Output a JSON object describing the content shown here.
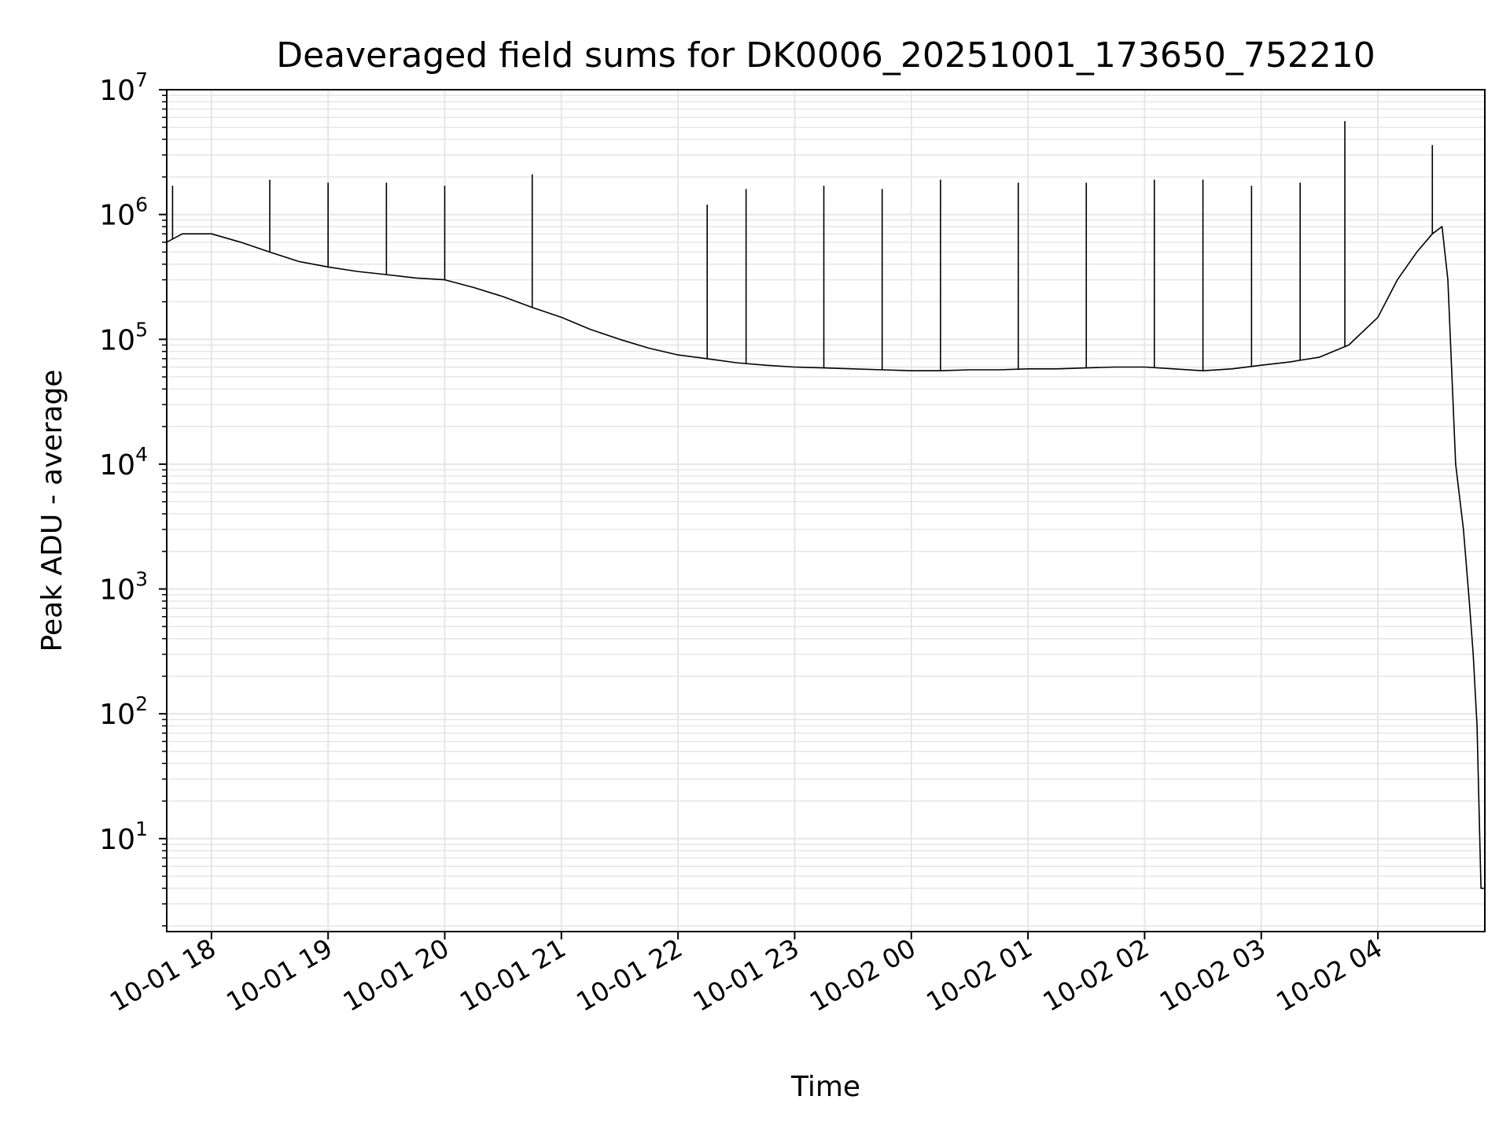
{
  "chart_data": {
    "type": "line",
    "title": "Deaveraged field sums for DK0006_20251001_173650_752210",
    "xlabel": "Time",
    "ylabel": "Peak ADU - average",
    "y_scale": "log",
    "ylim": [
      1.8,
      10000000
    ],
    "xlim": [
      "2025-10-01 17:37",
      "2025-10-02 04:55"
    ],
    "grid": "on (major and minor)",
    "colors": {
      "line": "#000000",
      "grid": "#e6e6e6",
      "axes": "#000000",
      "background": "#ffffff"
    },
    "x_ticks": [
      {
        "t": "2025-10-01 18:00",
        "label": "10-01 18"
      },
      {
        "t": "2025-10-01 19:00",
        "label": "10-01 19"
      },
      {
        "t": "2025-10-01 20:00",
        "label": "10-01 20"
      },
      {
        "t": "2025-10-01 21:00",
        "label": "10-01 21"
      },
      {
        "t": "2025-10-01 22:00",
        "label": "10-01 22"
      },
      {
        "t": "2025-10-01 23:00",
        "label": "10-01 23"
      },
      {
        "t": "2025-10-02 00:00",
        "label": "10-02 00"
      },
      {
        "t": "2025-10-02 01:00",
        "label": "10-02 01"
      },
      {
        "t": "2025-10-02 02:00",
        "label": "10-02 02"
      },
      {
        "t": "2025-10-02 03:00",
        "label": "10-02 03"
      },
      {
        "t": "2025-10-02 04:00",
        "label": "10-02 04"
      }
    ],
    "y_ticks": [
      {
        "value": 10,
        "base": "10",
        "exp": "1"
      },
      {
        "value": 100,
        "base": "10",
        "exp": "2"
      },
      {
        "value": 1000,
        "base": "10",
        "exp": "3"
      },
      {
        "value": 10000,
        "base": "10",
        "exp": "4"
      },
      {
        "value": 100000,
        "base": "10",
        "exp": "5"
      },
      {
        "value": 1000000,
        "base": "10",
        "exp": "6"
      },
      {
        "value": 10000000,
        "base": "10",
        "exp": "7"
      }
    ],
    "series": [
      {
        "x": [
          "2025-10-01 17:37",
          "2025-10-01 17:45",
          "2025-10-01 18:00",
          "2025-10-01 18:15",
          "2025-10-01 18:30",
          "2025-10-01 18:45",
          "2025-10-01 19:00",
          "2025-10-01 19:15",
          "2025-10-01 19:30",
          "2025-10-01 19:45",
          "2025-10-01 20:00",
          "2025-10-01 20:15",
          "2025-10-01 20:30",
          "2025-10-01 20:45",
          "2025-10-01 21:00",
          "2025-10-01 21:15",
          "2025-10-01 21:30",
          "2025-10-01 21:45",
          "2025-10-01 22:00",
          "2025-10-01 22:15",
          "2025-10-01 22:30",
          "2025-10-01 22:45",
          "2025-10-01 23:00",
          "2025-10-01 23:15",
          "2025-10-01 23:30",
          "2025-10-01 23:45",
          "2025-10-02 00:00",
          "2025-10-02 00:15",
          "2025-10-02 00:30",
          "2025-10-02 00:45",
          "2025-10-02 01:00",
          "2025-10-02 01:15",
          "2025-10-02 01:30",
          "2025-10-02 01:45",
          "2025-10-02 02:00",
          "2025-10-02 02:15",
          "2025-10-02 02:30",
          "2025-10-02 02:45",
          "2025-10-02 03:00",
          "2025-10-02 03:15",
          "2025-10-02 03:30",
          "2025-10-02 03:45",
          "2025-10-02 04:00",
          "2025-10-02 04:10",
          "2025-10-02 04:20",
          "2025-10-02 04:28",
          "2025-10-02 04:33",
          "2025-10-02 04:36",
          "2025-10-02 04:40",
          "2025-10-02 04:44",
          "2025-10-02 04:47",
          "2025-10-02 04:49",
          "2025-10-02 04:51",
          "2025-10-02 04:53",
          "2025-10-02 04:55"
        ],
        "y": [
          600000,
          700000,
          700000,
          600000,
          500000,
          420000,
          380000,
          350000,
          330000,
          310000,
          300000,
          260000,
          220000,
          180000,
          150000,
          120000,
          100000,
          85000,
          75000,
          70000,
          65000,
          62000,
          60000,
          59000,
          58000,
          57000,
          56000,
          56000,
          57000,
          57000,
          58000,
          58000,
          59000,
          60000,
          60000,
          58000,
          56000,
          58000,
          62000,
          66000,
          72000,
          90000,
          150000,
          300000,
          500000,
          700000,
          800000,
          300000,
          10000,
          3000,
          800,
          300,
          80,
          4,
          4
        ],
        "spikes": [
          {
            "t": "2025-10-01 17:40",
            "y": 1700000
          },
          {
            "t": "2025-10-01 18:30",
            "y": 1900000
          },
          {
            "t": "2025-10-01 19:00",
            "y": 1800000
          },
          {
            "t": "2025-10-01 19:30",
            "y": 1800000
          },
          {
            "t": "2025-10-01 20:00",
            "y": 1700000
          },
          {
            "t": "2025-10-01 20:45",
            "y": 2100000
          },
          {
            "t": "2025-10-01 22:15",
            "y": 1200000
          },
          {
            "t": "2025-10-01 22:35",
            "y": 1600000
          },
          {
            "t": "2025-10-01 23:15",
            "y": 1700000
          },
          {
            "t": "2025-10-01 23:45",
            "y": 1600000
          },
          {
            "t": "2025-10-02 00:15",
            "y": 1900000
          },
          {
            "t": "2025-10-02 00:55",
            "y": 1800000
          },
          {
            "t": "2025-10-02 01:30",
            "y": 1800000
          },
          {
            "t": "2025-10-02 02:05",
            "y": 1900000
          },
          {
            "t": "2025-10-02 02:30",
            "y": 1900000
          },
          {
            "t": "2025-10-02 02:55",
            "y": 1700000
          },
          {
            "t": "2025-10-02 03:20",
            "y": 1800000
          },
          {
            "t": "2025-10-02 03:43",
            "y": 5600000
          },
          {
            "t": "2025-10-02 04:28",
            "y": 3600000
          }
        ]
      }
    ]
  }
}
